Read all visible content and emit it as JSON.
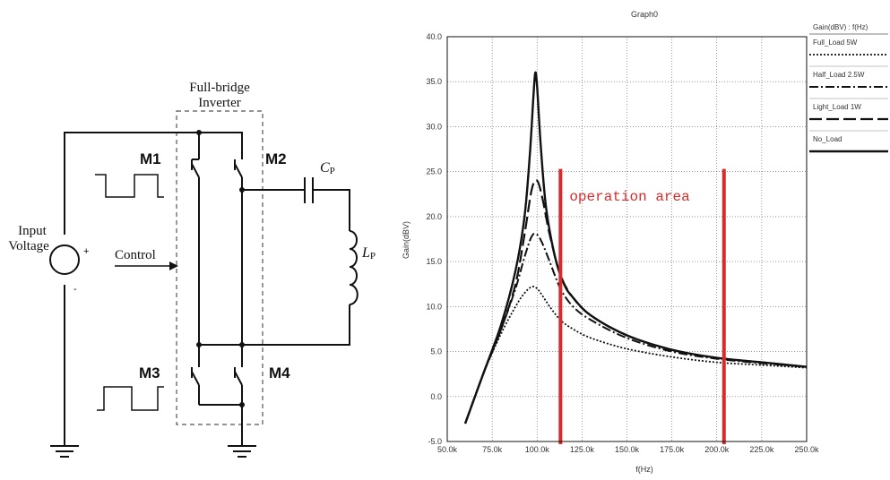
{
  "circuit": {
    "title_line1": "Full-bridge",
    "title_line2": "Inverter",
    "input_line1": "Input",
    "input_line2": "Voltage",
    "plus": "+",
    "minus": "-",
    "control": "Control",
    "m1": "M1",
    "m2": "M2",
    "m3": "M3",
    "m4": "M4",
    "cp_main": "C",
    "cp_sub": "P",
    "lp_main": "L",
    "lp_sub": "P"
  },
  "chart_data": {
    "type": "line",
    "title": "Graph0",
    "xlabel": "f(Hz)",
    "ylabel": "Gain(dBV)",
    "xlim": [
      50,
      250
    ],
    "ylim": [
      -5,
      40
    ],
    "xticks": [
      "50.0k",
      "75.0k",
      "100.0k",
      "125.0k",
      "150.0k",
      "175.0k",
      "200.0k",
      "225.0k",
      "250.0k"
    ],
    "yticks": [
      "-5.0",
      "0.0",
      "5.0",
      "10.0",
      "15.0",
      "20.0",
      "25.0",
      "30.0",
      "35.0",
      "40.0"
    ],
    "legend_header": "Gain(dBV) : f(Hz)",
    "grid": true,
    "annotation": "operation area",
    "operation_area_hz": [
      113,
      204
    ],
    "series": [
      {
        "name": "Full_Load 5W",
        "style": "dotted",
        "x": [
          60,
          70,
          80,
          88,
          93,
          97,
          100,
          103,
          107,
          113,
          120,
          130,
          150,
          175,
          200,
          225,
          250
        ],
        "y": [
          -3.0,
          2.5,
          7.0,
          10.0,
          11.5,
          12.2,
          12.0,
          11.2,
          10.0,
          8.5,
          7.5,
          6.5,
          5.3,
          4.4,
          3.8,
          3.5,
          3.2
        ]
      },
      {
        "name": "Half_Load 2.5W",
        "style": "dash-dot",
        "x": [
          60,
          70,
          80,
          88,
          93,
          97,
          100,
          103,
          107,
          113,
          120,
          130,
          150,
          175,
          200,
          225,
          250
        ],
        "y": [
          -3.0,
          2.5,
          7.5,
          12.0,
          15.5,
          17.8,
          18.0,
          17.0,
          15.0,
          12.0,
          10.0,
          8.5,
          6.5,
          5.0,
          4.2,
          3.7,
          3.3
        ]
      },
      {
        "name": "Light_Load 1W",
        "style": "long-dash",
        "x": [
          60,
          70,
          80,
          88,
          93,
          97,
          100,
          103,
          107,
          113,
          120,
          130,
          150,
          175,
          200,
          225,
          250
        ],
        "y": [
          -3.0,
          2.5,
          7.5,
          12.5,
          18.0,
          23.0,
          24.0,
          22.0,
          18.0,
          13.5,
          11.0,
          9.0,
          6.8,
          5.2,
          4.3,
          3.8,
          3.3
        ]
      },
      {
        "name": "No_Load",
        "style": "solid",
        "x": [
          60,
          70,
          80,
          88,
          93,
          96,
          98,
          99,
          100,
          102,
          105,
          110,
          115,
          120,
          130,
          150,
          175,
          200,
          225,
          250
        ],
        "y": [
          -3.0,
          2.5,
          8.0,
          14.0,
          20.0,
          27.0,
          33.5,
          36.0,
          34.5,
          28.0,
          21.0,
          15.5,
          12.5,
          11.0,
          9.0,
          6.8,
          5.2,
          4.3,
          3.8,
          3.3
        ]
      }
    ]
  }
}
